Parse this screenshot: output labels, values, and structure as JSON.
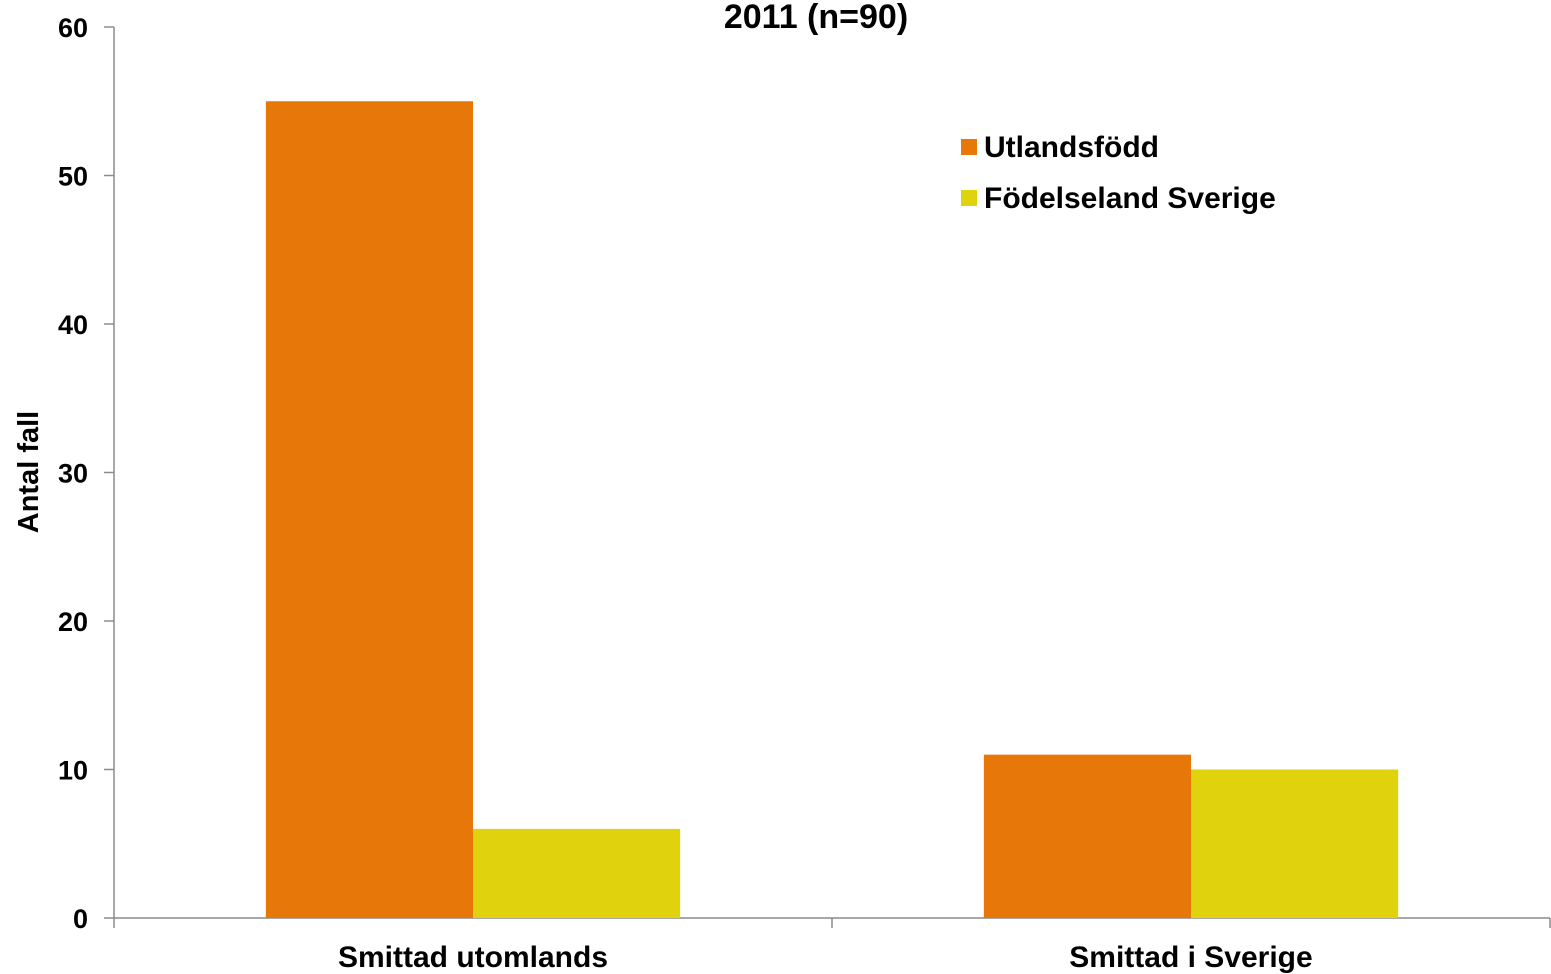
{
  "chart_data": {
    "type": "bar",
    "title": "2011 (n=90)",
    "ylabel": "Antal fall",
    "xlabel": "",
    "ylim": [
      0,
      60
    ],
    "yticks": [
      0,
      10,
      20,
      30,
      40,
      50,
      60
    ],
    "categories": [
      "Smittad utomlands",
      "Smittad i Sverige"
    ],
    "series": [
      {
        "name": "Utlandsfödd",
        "color": "#E8770A",
        "values": [
          55,
          11
        ]
      },
      {
        "name": "Födelseland Sverige",
        "color": "#E0D20C",
        "values": [
          6,
          10
        ]
      }
    ],
    "legend_position": "top-right",
    "grid": false
  }
}
